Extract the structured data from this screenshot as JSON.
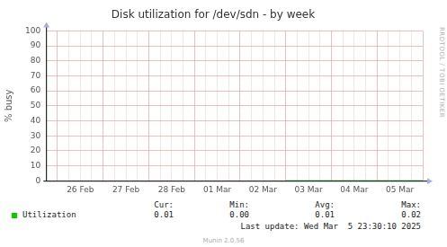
{
  "chart_data": {
    "type": "line",
    "title": "Disk utilization for /dev/sdn - by week",
    "ylabel": "% busy",
    "categories": [
      null,
      null,
      null,
      "26 Feb",
      null,
      null,
      null,
      "27 Feb",
      null,
      null,
      null,
      "28 Feb",
      null,
      null,
      null,
      "01 Mar",
      null,
      null,
      null,
      "02 Mar",
      null,
      null,
      null,
      "03 Mar",
      null,
      null,
      null,
      "04 Mar",
      null,
      null,
      null,
      "05 Mar",
      null,
      null
    ],
    "series": [
      {
        "name": "Utilization",
        "color": "#00cc00",
        "values": [
          null,
          null,
          null,
          null,
          null,
          null,
          null,
          null,
          null,
          null,
          null,
          null,
          null,
          null,
          null,
          null,
          null,
          null,
          null,
          null,
          null,
          0.01,
          0.01,
          0.01,
          0.02,
          0.01,
          0.01,
          0.0,
          0.01,
          0.01,
          0.01,
          0.01,
          0.01,
          0.01
        ]
      }
    ],
    "ylim": [
      0,
      100
    ],
    "yticks": [
      0,
      10,
      20,
      30,
      40,
      50,
      60,
      70,
      80,
      90,
      100
    ],
    "grid": true,
    "summary": {
      "columns": [
        "Cur:",
        "Min:",
        "Avg:",
        "Max:"
      ],
      "values": [
        {
          "value": 0.01,
          "label": "0.01"
        },
        {
          "value": 0.0,
          "label": "0.00"
        },
        {
          "value": 0.01,
          "label": "0.01"
        },
        {
          "value": 0.02,
          "label": "0.02"
        }
      ]
    },
    "annotations": {
      "last_update": "Last update: Wed Mar  5 23:30:10 2025",
      "footer": "Munin 2.0.56",
      "watermark": "RRDTOOL / TOBI OETIKER"
    }
  }
}
